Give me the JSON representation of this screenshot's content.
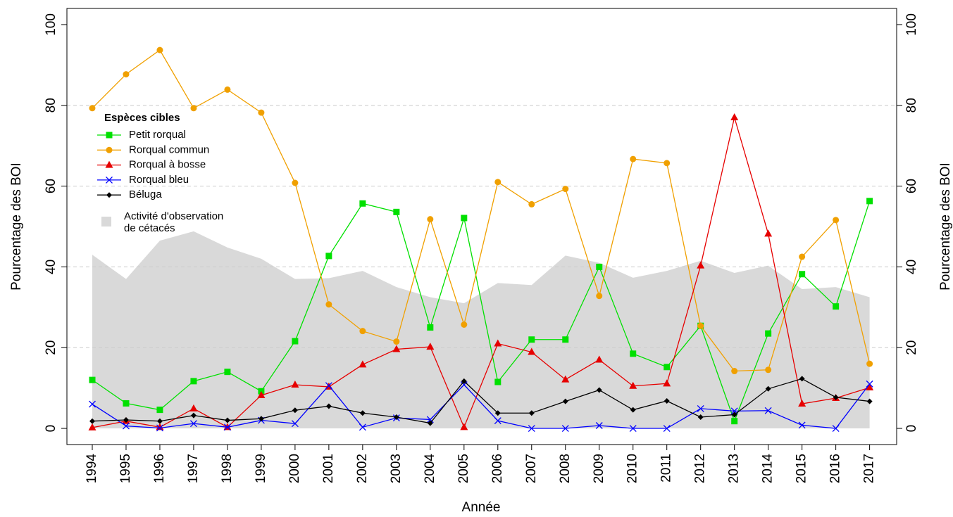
{
  "chart_data": {
    "type": "line",
    "x_label": "Année",
    "y_label": "Pourcentage des BOI",
    "y2_label": "Pourcentage des BOI",
    "x": [
      1994,
      1995,
      1996,
      1997,
      1998,
      1999,
      2000,
      2001,
      2002,
      2003,
      2004,
      2005,
      2006,
      2007,
      2008,
      2009,
      2010,
      2011,
      2012,
      2013,
      2014,
      2015,
      2016,
      2017
    ],
    "xlim": [
      1993.25,
      2017.8
    ],
    "xticks": [
      1994,
      1995,
      1996,
      1997,
      1998,
      1999,
      2000,
      2001,
      2002,
      2003,
      2004,
      2005,
      2006,
      2007,
      2008,
      2009,
      2010,
      2011,
      2012,
      2013,
      2014,
      2015,
      2016,
      2017
    ],
    "ylim": [
      -4,
      104
    ],
    "yticks": [
      0,
      20,
      40,
      60,
      80,
      100
    ],
    "y2lim": [
      -4,
      104
    ],
    "y2ticks": [
      0,
      20,
      40,
      60,
      80,
      100
    ],
    "gridlines": [
      20,
      40,
      60,
      80
    ],
    "legend_title": "Espèces cibles",
    "area": {
      "name": "Activité d'observation\nde cétacés",
      "color": "#d9d9d9",
      "values": [
        43,
        37,
        46.5,
        48.8,
        44.8,
        42,
        37,
        37.2,
        39,
        35,
        32.5,
        31,
        36,
        35.5,
        42.8,
        41,
        37.3,
        39,
        41.5,
        38.5,
        40.3,
        34.5,
        35,
        32.5
      ]
    },
    "series": [
      {
        "name": "Petit rorqual",
        "color": "#00e000",
        "marker": "square",
        "values": [
          12,
          6.2,
          4.6,
          11.7,
          14,
          9.2,
          21.6,
          42.7,
          55.7,
          53.6,
          25,
          52.1,
          11.5,
          22,
          22,
          40,
          18.5,
          15.2,
          25.4,
          1.8,
          23.5,
          38.2,
          30.2,
          56.3
        ]
      },
      {
        "name": "Rorqual commun",
        "color": "#f0a000",
        "marker": "circle",
        "values": [
          79.3,
          87.7,
          93.7,
          79.3,
          83.9,
          78.2,
          60.8,
          30.7,
          24.1,
          21.5,
          51.8,
          25.7,
          61,
          55.5,
          59.3,
          32.8,
          66.7,
          65.7,
          25.4,
          14.2,
          14.5,
          42.5,
          51.6,
          16
        ]
      },
      {
        "name": "Rorqual à bosse",
        "color": "#e60000",
        "marker": "triangle",
        "values": [
          0.2,
          1.8,
          0.3,
          4.9,
          0.3,
          8.2,
          10.8,
          10.3,
          15.8,
          19.6,
          20.2,
          0.3,
          21,
          18.9,
          12.1,
          17,
          10.5,
          11.1,
          40.3,
          77,
          48.2,
          6.1,
          7.5,
          10.1
        ]
      },
      {
        "name": "Rorqual bleu",
        "color": "#0000ff",
        "marker": "cross",
        "values": [
          6,
          0.6,
          0.1,
          1.2,
          0.3,
          2,
          1.2,
          10.6,
          0.3,
          2.6,
          2.2,
          10.8,
          1.9,
          0,
          0,
          0.7,
          0,
          0,
          4.9,
          4.3,
          4.4,
          0.8,
          0,
          11
        ]
      },
      {
        "name": "Béluga",
        "color": "#000000",
        "marker": "diamond",
        "values": [
          1.8,
          2.1,
          1.8,
          3.2,
          2,
          2.4,
          4.5,
          5.5,
          3.8,
          2.8,
          1.3,
          11.7,
          3.8,
          3.8,
          6.7,
          9.5,
          4.6,
          6.8,
          2.8,
          3.4,
          9.8,
          12.3,
          7.7,
          6.7
        ]
      }
    ]
  }
}
